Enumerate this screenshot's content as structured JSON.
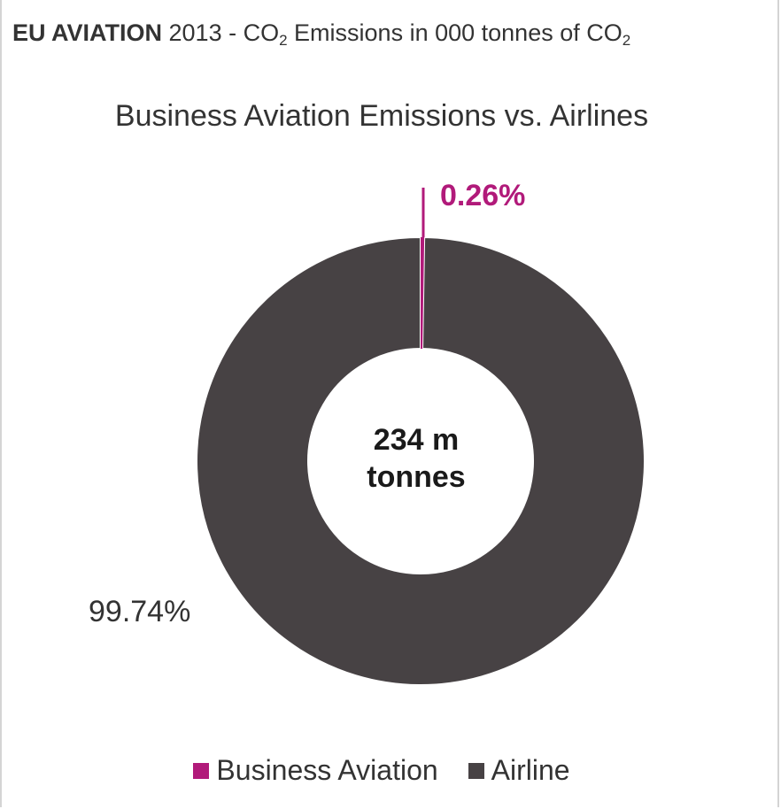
{
  "header": {
    "bold": "EU AVIATION",
    "pre": " 2013 - CO",
    "sub1": "2",
    "mid": " Emissions in 000 tonnes of CO",
    "sub2": "2"
  },
  "center_label": {
    "line1": "234 m",
    "line2": "tonnes"
  },
  "colors": {
    "business": "#b11a7a",
    "airline": "#474244"
  },
  "chart_data": {
    "type": "pie",
    "title": "Business Aviation Emissions vs. Airlines",
    "series": [
      {
        "name": "Business Aviation",
        "value": 0.26,
        "label": "0.26%",
        "color": "#b11a7a"
      },
      {
        "name": "Airline",
        "value": 99.74,
        "label": "99.74%",
        "color": "#474244"
      }
    ],
    "legend": "bottom-center"
  }
}
